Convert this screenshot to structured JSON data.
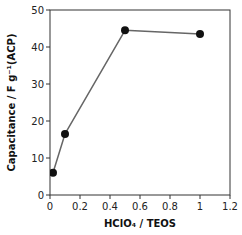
{
  "chart_data": {
    "type": "line",
    "x": [
      0.02,
      0.1,
      0.5,
      1.0
    ],
    "series": [
      {
        "color": "#666666",
        "colors": [
          "#111111",
          "#111111",
          "#111111",
          "#111111"
        ],
        "marker": "circle",
        "values": [
          6.0,
          16.5,
          44.5,
          43.5
        ]
      }
    ],
    "xlabel": "HClO₄ / TEOS",
    "ylabel": "Capacitance / F g⁻¹(ACP)",
    "xlim": [
      0,
      1.2
    ],
    "ylim": [
      0,
      50
    ],
    "xticks": [
      0,
      0.2,
      0.4,
      0.6,
      0.8,
      1,
      1.2
    ],
    "yticks": [
      0,
      10,
      20,
      30,
      40,
      50
    ],
    "grid": false
  }
}
